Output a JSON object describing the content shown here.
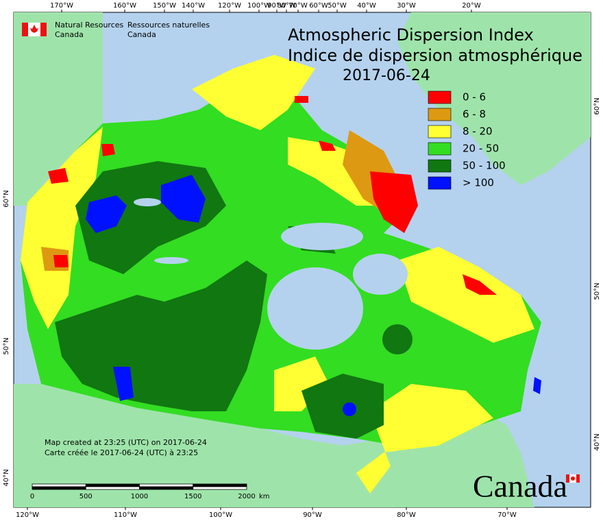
{
  "title": [
    "Atmospheric Dispersion Index",
    "Indice de dispersion atmosphérique"
  ],
  "date": "2017-06-24",
  "agency": {
    "english": [
      "Natural Resources",
      "Canada"
    ],
    "french": [
      "Ressources naturelles",
      "Canada"
    ]
  },
  "legend": [
    {
      "label": "0 - 6",
      "color": "#ff0000"
    },
    {
      "label": "6 - 8",
      "color": "#dd9911"
    },
    {
      "label": "8 - 20",
      "color": "#ffff33"
    },
    {
      "label": "20 - 50",
      "color": "#33dd22"
    },
    {
      "label": "50 - 100",
      "color": "#117711"
    },
    {
      "label": "> 100",
      "color": "#0011ff"
    }
  ],
  "top_longitudes": [
    "170°W",
    "160°W",
    "150°W",
    "140°W",
    "120°W",
    "100°W",
    "90°W",
    "80°W",
    "70°W",
    "60°W",
    "50°W",
    "40°W",
    "30°W",
    "20°W"
  ],
  "bottom_longitudes": [
    "120°W",
    "110°W",
    "100°W",
    "90°W",
    "80°W",
    "70°W"
  ],
  "left_latitudes": [
    "60°N",
    "50°N",
    "40°N"
  ],
  "right_latitudes": [
    "60°N",
    "50°N",
    "40°N"
  ],
  "credits": [
    "Map created at 23:25 (UTC) on 2017-06-24",
    "Carte créée le 2017-06-24 (UTC) à 23:25"
  ],
  "scale": {
    "labels": [
      "0",
      "500",
      "1000",
      "1500",
      "2000"
    ],
    "unit": "km"
  },
  "wordmark": "Canada"
}
